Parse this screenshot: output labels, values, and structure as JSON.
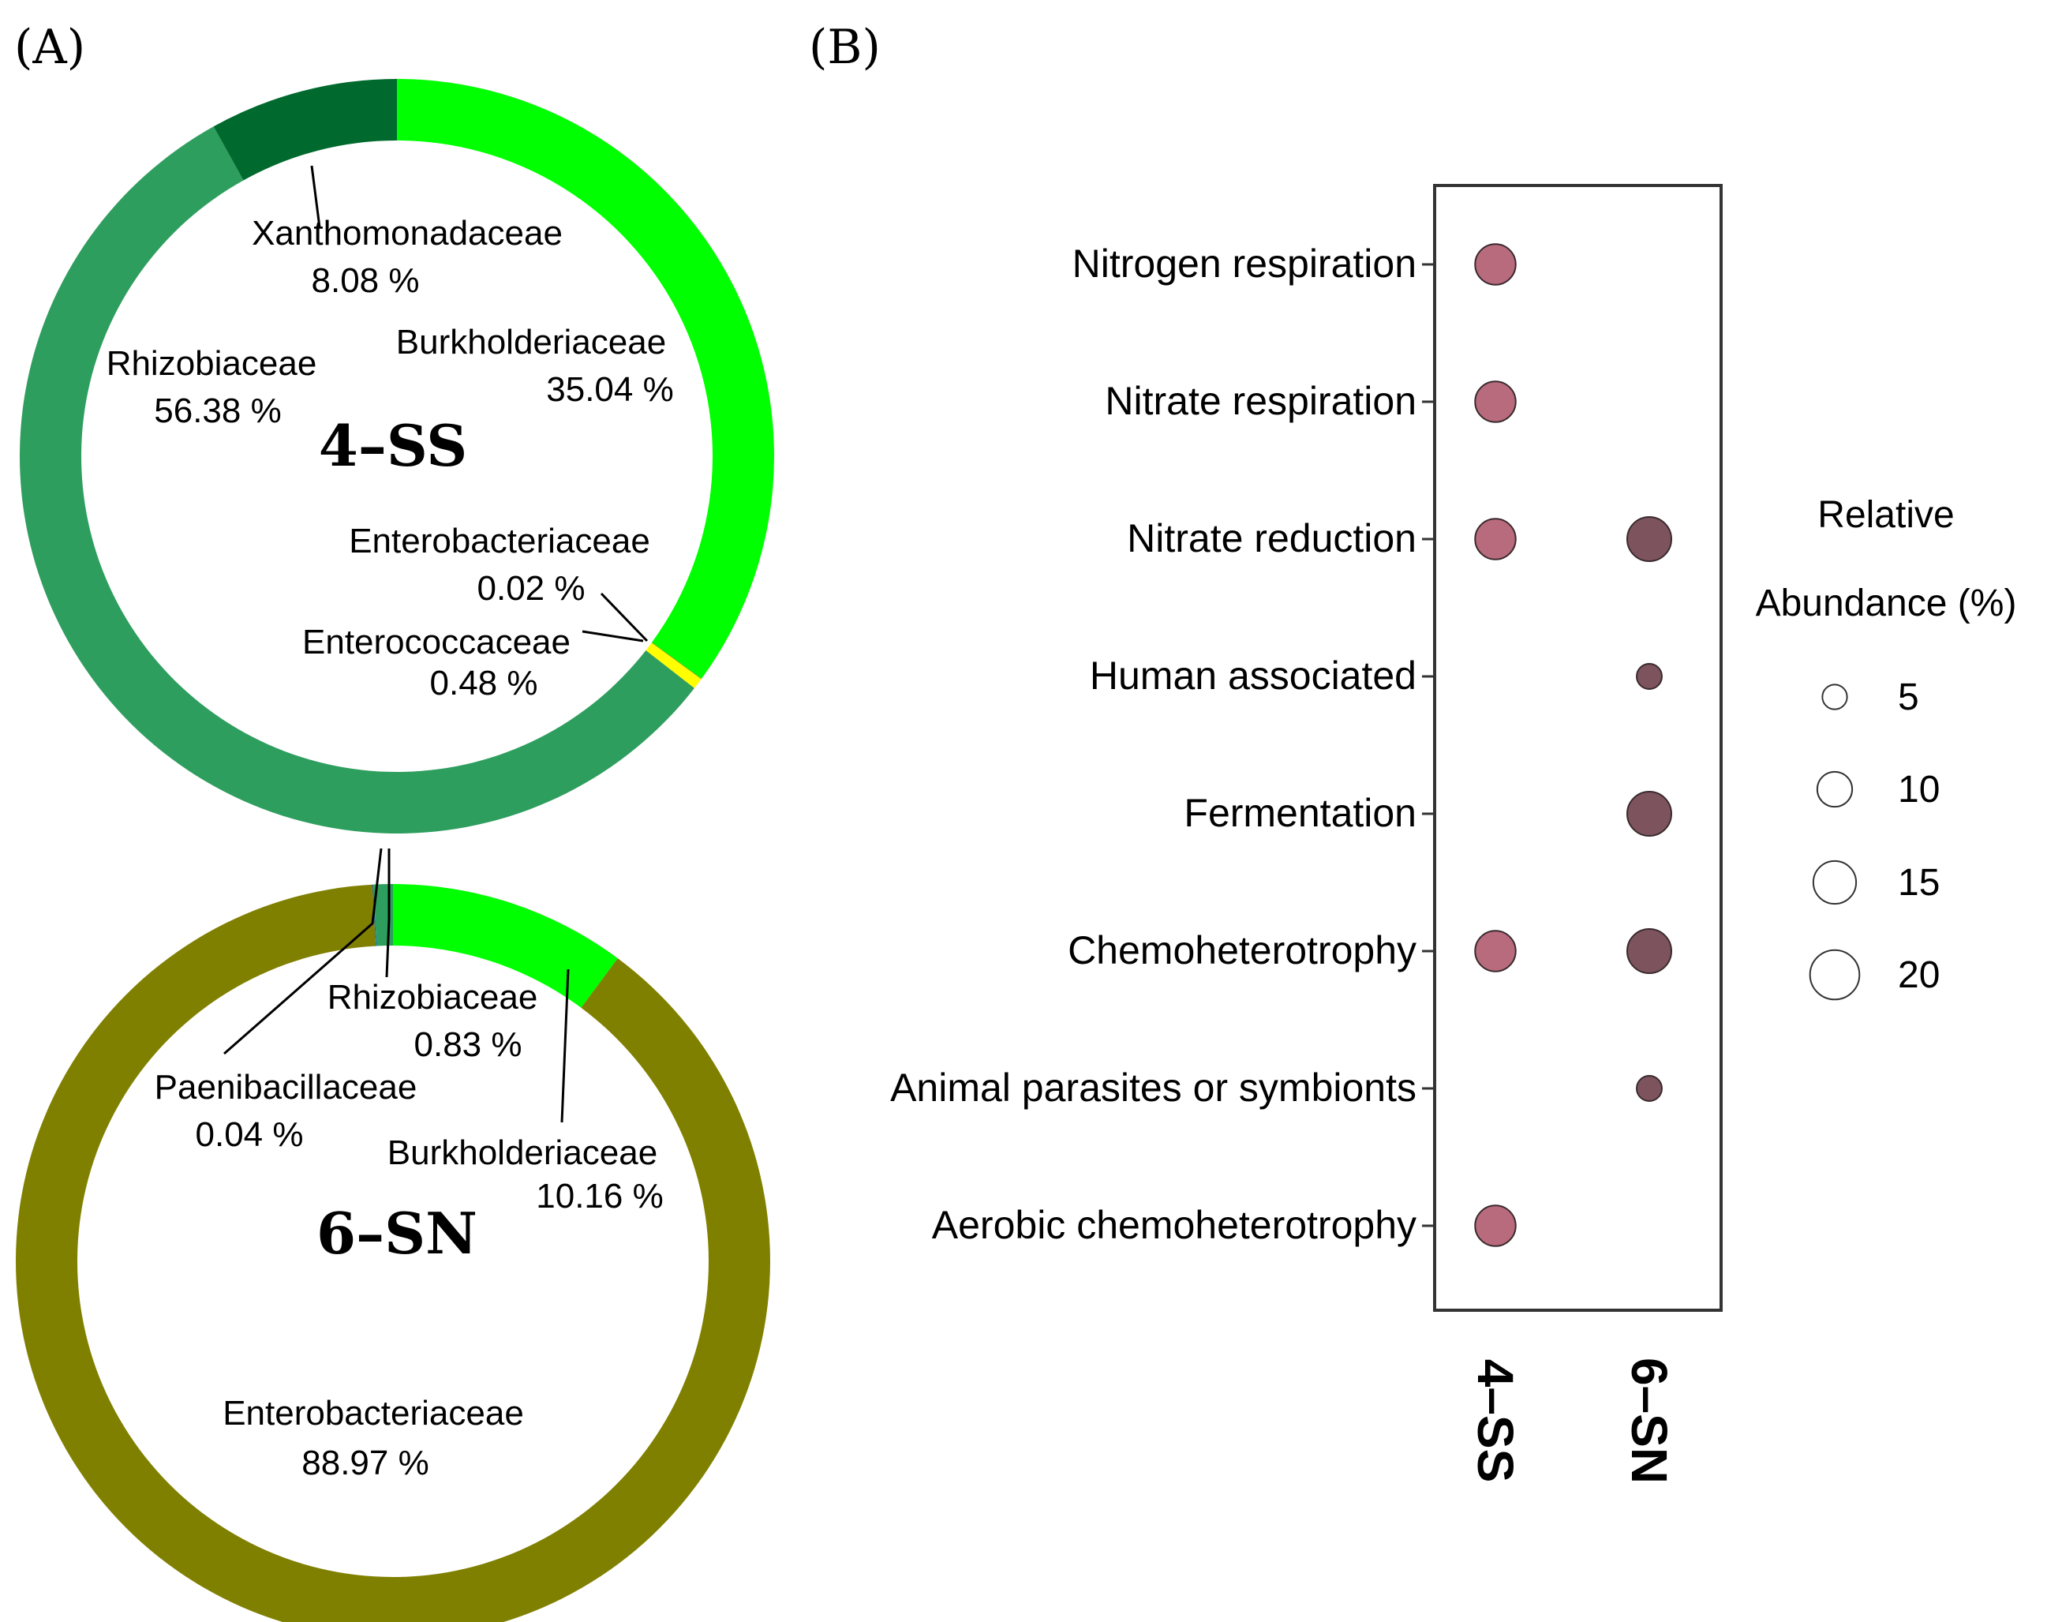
{
  "panel_a_label": "(A)",
  "panel_b_label": "(B)",
  "chart_data": [
    {
      "type": "pie",
      "variant": "donut",
      "panel": "A",
      "title": "4–SS",
      "slices": [
        {
          "name": "Burkholderiaceae",
          "value": 35.04,
          "label": "35.04 %",
          "color": "#00ff00"
        },
        {
          "name": "Enterobacteriaceae",
          "value": 0.02,
          "label": "0.02 %",
          "color": "#808000"
        },
        {
          "name": "Enterococcaceae",
          "value": 0.48,
          "label": "0.48 %",
          "color": "#ffff00"
        },
        {
          "name": "Rhizobiaceae",
          "value": 56.38,
          "label": "56.38 %",
          "color": "#2e9e5e"
        },
        {
          "name": "Xanthomonadaceae",
          "value": 8.08,
          "label": "8.08 %",
          "color": "#006a2e"
        }
      ]
    },
    {
      "type": "pie",
      "variant": "donut",
      "panel": "A",
      "title": "6–SN",
      "slices": [
        {
          "name": "Burkholderiaceae",
          "value": 10.16,
          "label": "10.16 %",
          "color": "#00ff00"
        },
        {
          "name": "Enterobacteriaceae",
          "value": 88.97,
          "label": "88.97 %",
          "color": "#808000"
        },
        {
          "name": "Paenibacillaceae",
          "value": 0.04,
          "label": "0.04 %",
          "color": "#1a5fb4"
        },
        {
          "name": "Rhizobiaceae",
          "value": 0.83,
          "label": "0.83 %",
          "color": "#2e9e5e"
        }
      ]
    },
    {
      "type": "scatter",
      "variant": "bubble",
      "panel": "B",
      "categories_y": [
        "Nitrogen respiration",
        "Nitrate respiration",
        "Nitrate reduction",
        "Human associated",
        "Fermentation",
        "Chemoheterotrophy",
        "Animal parasites or symbionts",
        "Aerobic chemoheterotrophy"
      ],
      "categories_x": [
        "4–SS",
        "6–SN"
      ],
      "series": [
        {
          "name": "4–SS",
          "color": "#b86b7c",
          "values": [
            13.5,
            13.5,
            13.5,
            null,
            null,
            13.5,
            null,
            13.5
          ]
        },
        {
          "name": "6–SN",
          "color": "#7d545d",
          "values": [
            null,
            null,
            16,
            5.2,
            16,
            16,
            5.2,
            null
          ]
        }
      ],
      "legend": {
        "title_line1": "Relative",
        "title_line2": "Abundance (%)",
        "sizes": [
          5,
          10,
          15,
          20
        ],
        "size_labels": [
          "5",
          "10",
          "15",
          "20"
        ],
        "placement": "right"
      }
    }
  ]
}
